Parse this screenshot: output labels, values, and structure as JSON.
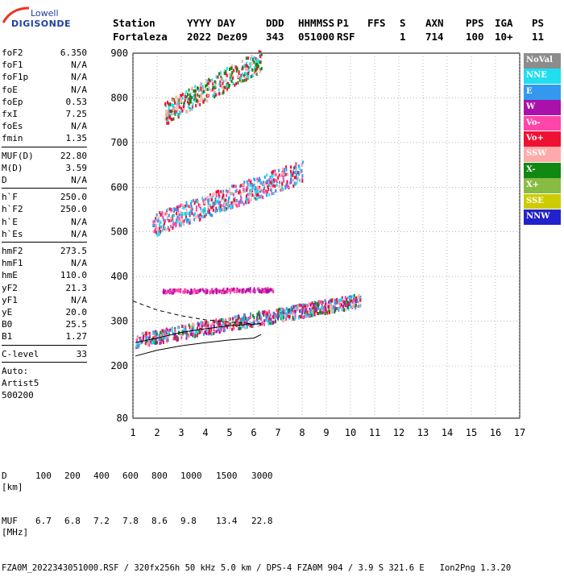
{
  "brand": {
    "line1": "Lowell",
    "line2": "DIGISONDE"
  },
  "header": {
    "labels": [
      "Station",
      "YYYY DAY",
      "DDD",
      "HHMMSS",
      "P1",
      "FFS",
      "S",
      "AXN",
      "PPS",
      "IGA",
      "PS"
    ],
    "values": [
      "Fortaleza",
      "2022 Dez09",
      "343",
      "051000",
      "RSF",
      "",
      "1",
      "714",
      "100",
      "10+",
      "11"
    ]
  },
  "params": [
    {
      "group": [
        {
          "name": "foF2",
          "value": "6.350"
        },
        {
          "name": "foF1",
          "value": "N/A"
        },
        {
          "name": "foF1p",
          "value": "N/A"
        },
        {
          "name": "foE",
          "value": "N/A"
        },
        {
          "name": "foEp",
          "value": "0.53"
        },
        {
          "name": "fxI",
          "value": "7.25"
        },
        {
          "name": "foEs",
          "value": "N/A"
        },
        {
          "name": "fmin",
          "value": "1.35"
        }
      ]
    },
    {
      "group": [
        {
          "name": "MUF(D)",
          "value": "22.80"
        },
        {
          "name": "M(D)",
          "value": "3.59"
        },
        {
          "name": "D",
          "value": "N/A"
        }
      ]
    },
    {
      "group": [
        {
          "name": "h`F",
          "value": "250.0"
        },
        {
          "name": "h`F2",
          "value": "250.0"
        },
        {
          "name": "h`E",
          "value": "N/A"
        },
        {
          "name": "h`Es",
          "value": "N/A"
        }
      ]
    },
    {
      "group": [
        {
          "name": "hmF2",
          "value": "273.5"
        },
        {
          "name": "hmF1",
          "value": "N/A"
        },
        {
          "name": "hmE",
          "value": "110.0"
        },
        {
          "name": "yF2",
          "value": "21.3"
        },
        {
          "name": "yF1",
          "value": "N/A"
        },
        {
          "name": "yE",
          "value": "20.0"
        },
        {
          "name": "B0",
          "value": "25.5"
        },
        {
          "name": "B1",
          "value": "1.27"
        }
      ]
    },
    {
      "group": [
        {
          "name": "C-level",
          "value": "33"
        }
      ]
    }
  ],
  "autoscale": {
    "line1": "Auto:",
    "line2": "Artist5",
    "line3": "500200"
  },
  "legend": [
    {
      "label": "NoVal",
      "color": "#8c8c8c"
    },
    {
      "label": "NNE",
      "color": "#22ddee"
    },
    {
      "label": "E",
      "color": "#3399ee"
    },
    {
      "label": "W",
      "color": "#aa11aa"
    },
    {
      "label": "Vo-",
      "color": "#ff44aa"
    },
    {
      "label": "Vo+",
      "color": "#ee1133"
    },
    {
      "label": "SSW",
      "color": "#ffaaaa"
    },
    {
      "label": "X-",
      "color": "#118811"
    },
    {
      "label": "X+",
      "color": "#88bb44"
    },
    {
      "label": "SSE",
      "color": "#cccc00"
    },
    {
      "label": "NNW",
      "color": "#2222cc"
    }
  ],
  "footer": {
    "d_label": "D",
    "d_values": [
      "100",
      "200",
      "400",
      "600",
      "800",
      "1000",
      "1500",
      "3000",
      "[km]"
    ],
    "muf_label": "MUF",
    "muf_values": [
      "6.7",
      "6.8",
      "7.2",
      "7.8",
      "8.6",
      "9.8",
      "13.4",
      "22.8",
      "[MHz]"
    ],
    "fileline": "FZA0M_2022343051000.RSF / 320fx256h 50 kHz 5.0 km / DPS-4 FZA0M 904 / 3.9 S 321.6 E   Ion2Png 1.3.20"
  },
  "chart_data": {
    "type": "scatter",
    "title": "",
    "xlabel": "",
    "ylabel": "",
    "xlim": [
      1,
      17
    ],
    "ylim": [
      80,
      900
    ],
    "x_ticks": [
      1,
      2,
      3,
      4,
      5,
      6,
      7,
      8,
      9,
      10,
      11,
      12,
      13,
      14,
      15,
      16,
      17
    ],
    "y_ticks": [
      80,
      200,
      300,
      400,
      500,
      600,
      700,
      800,
      900
    ],
    "y_breaks": "nonlinear (80 bottom, 200-900 linear)",
    "grid": "dotted",
    "trace_bands": [
      {
        "name": "F-trace main",
        "x_start": 1.1,
        "x_end": 10.4,
        "h_start": 255,
        "h_end": 345,
        "spread": 30,
        "colors": [
          "Vo+",
          "Vo-",
          "E",
          "NNE",
          "X-",
          "SSW",
          "W"
        ]
      },
      {
        "name": "F-trace 2nd hop",
        "x_start": 1.8,
        "x_end": 8.0,
        "h_start": 510,
        "h_end": 630,
        "spread": 50,
        "colors": [
          "Vo+",
          "Vo-",
          "NNE",
          "SSW",
          "E"
        ]
      },
      {
        "name": "F-trace 3rd hop",
        "x_start": 2.3,
        "x_end": 6.3,
        "h_start": 760,
        "h_end": 880,
        "spread": 50,
        "colors": [
          "NNE",
          "SSW",
          "Vo+",
          "X-"
        ]
      },
      {
        "name": "Es-like layer",
        "x_start": 2.2,
        "x_end": 6.8,
        "h_start": 368,
        "h_end": 372,
        "spread": 8,
        "colors": [
          "W",
          "Vo-"
        ]
      }
    ],
    "profile_curves": [
      {
        "name": "profile-solid-upper",
        "x": [
          1.1,
          2.0,
          3.0,
          4.0,
          5.0,
          6.0,
          6.3
        ],
        "h": [
          252,
          262,
          275,
          283,
          290,
          293,
          295
        ]
      },
      {
        "name": "profile-solid-lower",
        "x": [
          1.1,
          2.0,
          3.0,
          4.0,
          5.0,
          6.0,
          6.3
        ],
        "h": [
          222,
          235,
          245,
          252,
          258,
          262,
          270
        ]
      },
      {
        "name": "profile-dashed",
        "x": [
          1.0,
          2.0,
          3.0,
          4.0,
          5.0,
          6.0,
          6.3
        ],
        "h": [
          345,
          325,
          312,
          303,
          298,
          294,
          293
        ]
      }
    ]
  }
}
